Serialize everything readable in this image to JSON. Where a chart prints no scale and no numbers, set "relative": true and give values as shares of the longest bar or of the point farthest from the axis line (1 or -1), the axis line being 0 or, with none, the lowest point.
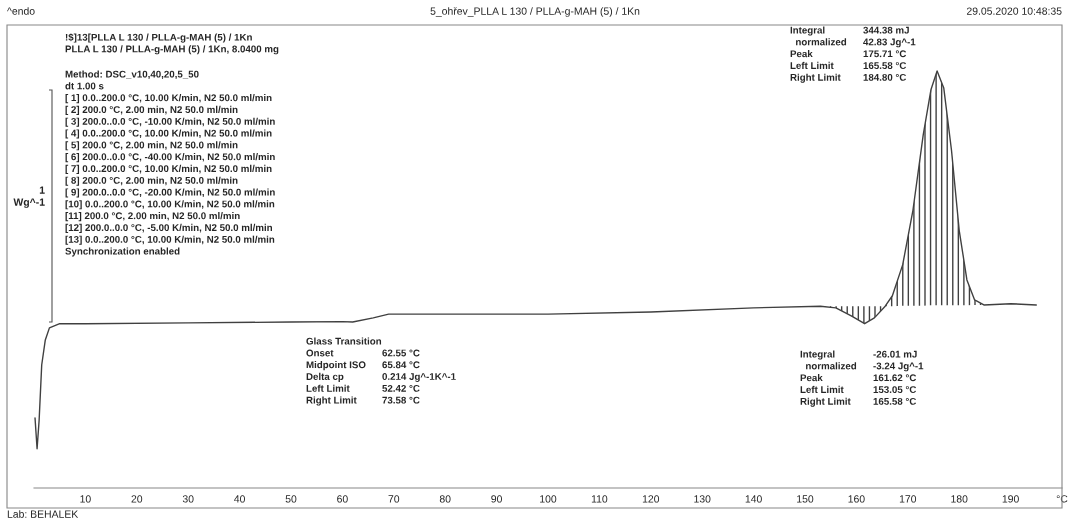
{
  "chart_data": {
    "type": "line",
    "title": "5_ohřev_PLLA L 130 / PLLA-g-MAH (5) / 1Kn",
    "ylabel": "1\nWg^-1",
    "relative": true,
    "xlim": [
      0,
      200
    ],
    "xticks": [
      10,
      20,
      30,
      40,
      50,
      60,
      70,
      80,
      90,
      100,
      110,
      120,
      130,
      140,
      150,
      160,
      170,
      180,
      190,
      {
        "value": 200,
        "label": "°C"
      }
    ],
    "series": [
      {
        "color": "#404040",
        "x": [
          0.2,
          0.6,
          1.0,
          1.5,
          2.2,
          3,
          5,
          10,
          30,
          50,
          60,
          62,
          66,
          69,
          72,
          80,
          100,
          120,
          140,
          153,
          156,
          159,
          161.6,
          163.5,
          165.6,
          167,
          169,
          171,
          173,
          174.5,
          175.7,
          177,
          178.5,
          180,
          181.5,
          183,
          184.8,
          190,
          195
        ],
        "values": [
          0.168,
          0.094,
          0.163,
          0.295,
          0.355,
          0.384,
          0.394,
          0.394,
          0.396,
          0.398,
          0.399,
          0.398,
          0.408,
          0.417,
          0.417,
          0.417,
          0.417,
          0.422,
          0.432,
          0.436,
          0.432,
          0.413,
          0.394,
          0.408,
          0.436,
          0.461,
          0.535,
          0.666,
          0.847,
          0.955,
          1.0,
          0.959,
          0.81,
          0.618,
          0.499,
          0.451,
          0.439,
          0.442,
          0.439
        ],
        "lower": [
          null,
          null,
          null,
          null,
          null,
          null,
          null,
          null,
          null,
          null,
          null,
          null,
          null,
          null,
          null,
          null,
          null,
          null,
          null,
          0.436,
          0.432,
          0.413,
          0.394,
          0.408,
          0.436,
          0.436,
          0.437,
          0.437,
          0.437,
          0.438,
          0.438,
          0.438,
          0.438,
          0.438,
          0.438,
          0.439,
          0.439,
          null,
          null
        ],
        "upper": [
          null,
          null,
          null,
          null,
          null,
          null,
          null,
          null,
          null,
          null,
          null,
          null,
          null,
          null,
          null,
          null,
          null,
          null,
          null,
          0.436,
          0.436,
          0.436,
          0.436,
          0.436,
          0.436,
          0.461,
          0.535,
          0.666,
          0.847,
          0.955,
          1.0,
          0.959,
          0.81,
          0.618,
          0.499,
          0.451,
          0.439,
          null,
          null
        ]
      }
    ],
    "marker": "none",
    "line_style": "solid",
    "grid": false,
    "legend": false,
    "annotations": [
      "^endo",
      "29.05.2020 10:48:35",
      "!$]13[PLLA L 130 / PLLA-g-MAH (5) / 1Kn\nPLLA L 130 / PLLA-g-MAH (5) / 1Kn, 8.0400 mg",
      "Method: DSC_v10,40,20,5_50\ndt 1.00 s\n[ 1] 0.0..200.0 °C, 10.00 K/min, N2 50.0 ml/min\n[ 2] 200.0 °C, 2.00 min, N2 50.0 ml/min\n[ 3] 200.0..0.0 °C, -10.00 K/min, N2 50.0 ml/min\n[ 4] 0.0..200.0 °C, 10.00 K/min, N2 50.0 ml/min\n[ 5] 200.0 °C, 2.00 min, N2 50.0 ml/min\n[ 6] 200.0..0.0 °C, -40.00 K/min, N2 50.0 ml/min\n[ 7] 0.0..200.0 °C, 10.00 K/min, N2 50.0 ml/min\n[ 8] 200.0 °C, 2.00 min, N2 50.0 ml/min\n[ 9] 200.0..0.0 °C, -20.00 K/min, N2 50.0 ml/min\n[10] 0.0..200.0 °C, 10.00 K/min, N2 50.0 ml/min\n[11] 200.0 °C, 2.00 min, N2 50.0 ml/min\n[12] 200.0..0.0 °C, -5.00 K/min, N2 50.0 ml/min\n[13] 0.0..200.0 °C, 10.00 K/min, N2 50.0 ml/min\nSynchronization enabled",
      "Glass Transition\nOnset\t62.55 °C\nMidpoint ISO\t65.84 °C\nDelta cp\t0.214 Jg^-1K^-1\nLeft Limit\t52.42 °C\nRight Limit\t73.58 °C",
      "Integral\t344.38 mJ\n  normalized\t42.83 Jg^-1\nPeak\t175.71 °C\nLeft Limit\t165.58 °C\nRight Limit\t184.80 °C",
      "Integral\t-26.01 mJ\n  normalized\t-3.24 Jg^-1\nPeak\t161.62 °C\nLeft Limit\t153.05 °C\nRight Limit\t165.58 °C",
      "Lab: BEHALEK"
    ]
  }
}
